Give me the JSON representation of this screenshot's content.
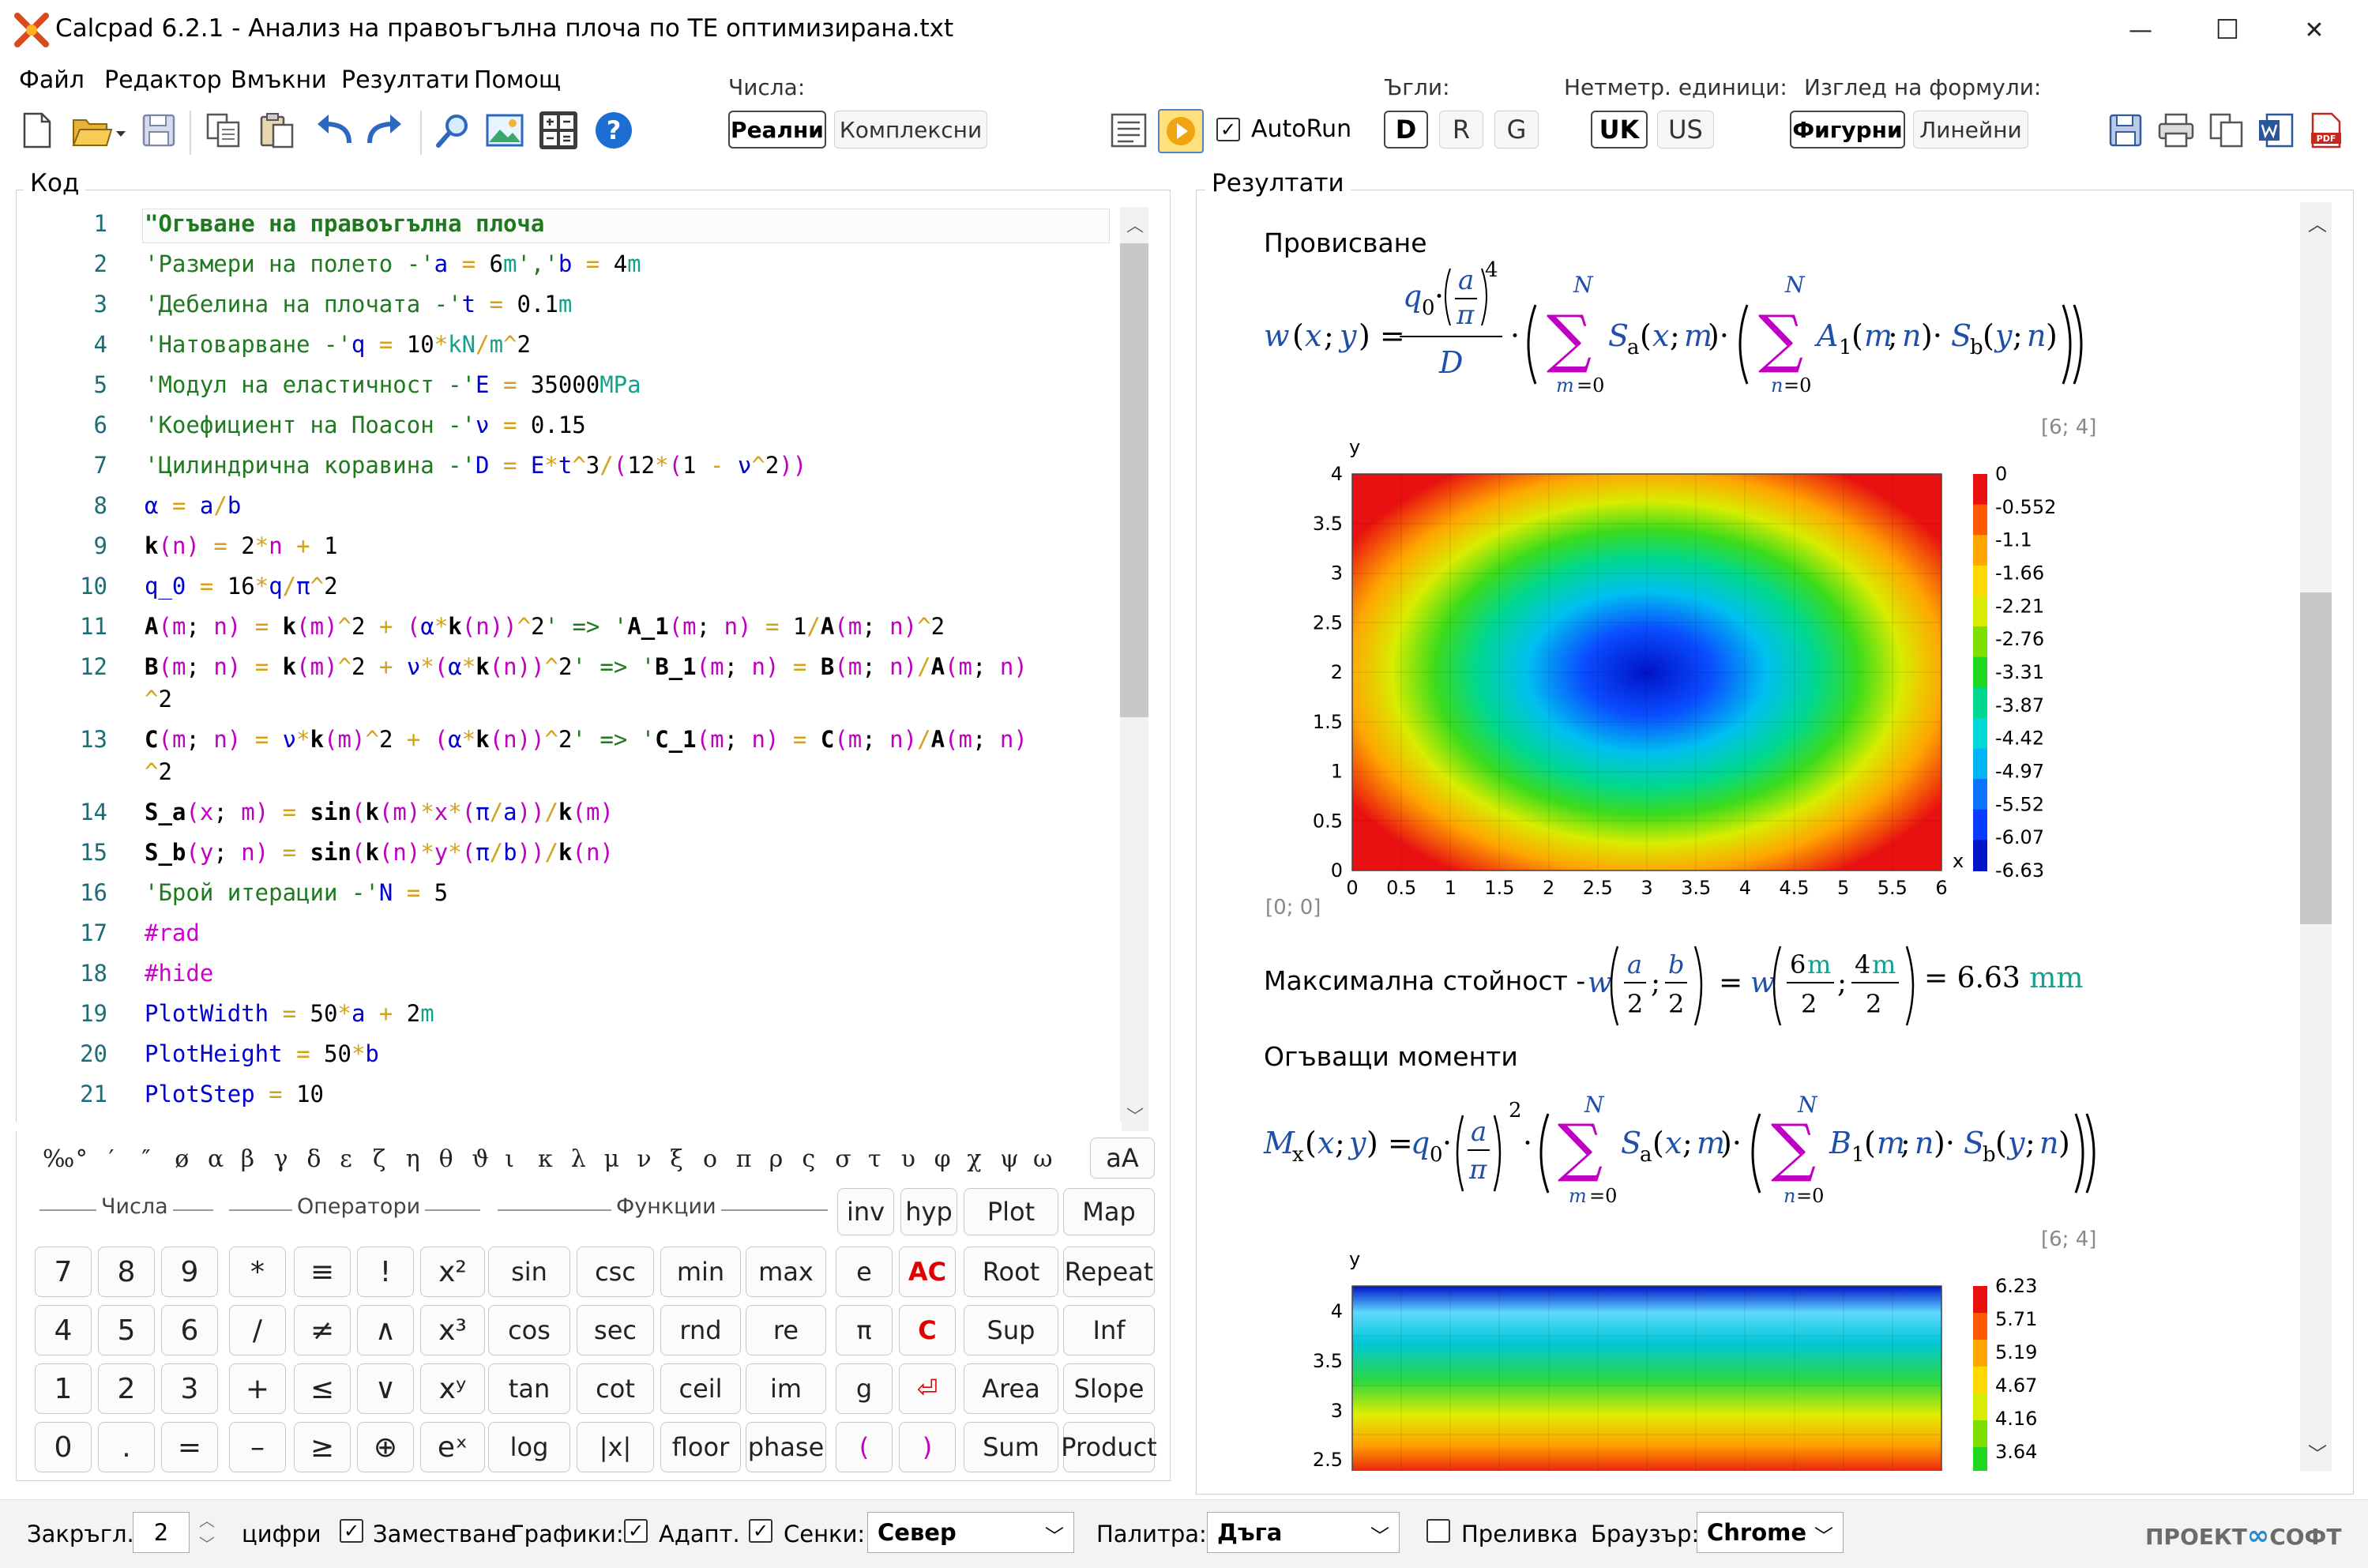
{
  "window": {
    "title": "Calcpad 6.2.1 - Анализ на правоъгълна плоча по ТЕ оптимизирана.txt",
    "minimize": "—",
    "maximize": "☐",
    "close": "✕"
  },
  "menu": [
    "Файл",
    "Редактор",
    "Вмъкни",
    "Резултати",
    "Помощ"
  ],
  "toolbar": {
    "numbers_label": "Числа:",
    "real": "Реални",
    "complex": "Комплексни",
    "autorun": "AutoRun",
    "angles_label": "Ъгли:",
    "angle_d": "D",
    "angle_r": "R",
    "angle_g": "G",
    "units_label": "Нетметр. единици:",
    "unit_uk": "UK",
    "unit_us": "US",
    "view_label": "Изглед на формули:",
    "view_figure": "Фигурни",
    "view_linear": "Линейни",
    "help_glyph": "?"
  },
  "code": {
    "title": "Код",
    "line_numbers": [
      "1",
      "2",
      "3",
      "4",
      "5",
      "6",
      "7",
      "8",
      "9",
      "10",
      "11",
      "12",
      "",
      "13",
      "",
      "14",
      "15",
      "16",
      "17",
      "18",
      "19",
      "20",
      "21"
    ]
  },
  "keyboard": {
    "glyphs": [
      "‰",
      "°",
      "′",
      "″",
      "ø",
      "α",
      "β",
      "γ",
      "δ",
      "ε",
      "ζ",
      "η",
      "θ",
      "ϑ",
      "ι",
      "κ",
      "λ",
      "μ",
      "ν",
      "ξ",
      "ο",
      "π",
      "ρ",
      "ς",
      "σ",
      "τ",
      "υ",
      "φ",
      "χ",
      "ψ",
      "ω"
    ],
    "case_toggle": "aA",
    "group_numbers": "Числа",
    "group_operators": "Оператори",
    "group_functions": "Функции",
    "inv": "inv",
    "hyp": "hyp",
    "plot": "Plot",
    "map": "Map",
    "rows": [
      [
        "7",
        "8",
        "9",
        "*",
        "≡",
        "!",
        "x²",
        "sin",
        "csc",
        "min",
        "max",
        "e",
        "AC",
        "Root",
        "Repeat"
      ],
      [
        "4",
        "5",
        "6",
        "/",
        "≠",
        "∧",
        "x³",
        "cos",
        "sec",
        "rnd",
        "re",
        "π",
        "C",
        "Sup",
        "Inf"
      ],
      [
        "1",
        "2",
        "3",
        "+",
        "≤",
        "∨",
        "xʸ",
        "tan",
        "cot",
        "ceil",
        "im",
        "g",
        "⏎",
        "Area",
        "Slope"
      ],
      [
        "0",
        ".",
        "=",
        "–",
        "≥",
        "⊕",
        "eˣ",
        "log",
        "|x|",
        "floor",
        "phase",
        "(",
        ")",
        "Sum",
        "Product"
      ]
    ]
  },
  "results": {
    "title": "Резултати",
    "heading_deflection": "Провисване",
    "dims_1": "[6; 4]",
    "origin_1": "[0; 0]",
    "max_label": "Максимална стойност -",
    "max_value": "= 6.63",
    "max_unit": "mm",
    "heading_moments": "Огъващи моменти",
    "dims_2": "[6; 4]",
    "plot1_axis_x": "x",
    "plot1_axis_y": "y",
    "plot1_xticks": [
      "0",
      "0.5",
      "1",
      "1.5",
      "2",
      "2.5",
      "3",
      "3.5",
      "4",
      "4.5",
      "5",
      "5.5",
      "6"
    ],
    "plot1_yticks": [
      "0",
      "0.5",
      "1",
      "1.5",
      "2",
      "2.5",
      "3",
      "3.5",
      "4"
    ],
    "plot1_legend": [
      "0",
      "-0.552",
      "-1.1",
      "-1.66",
      "-2.21",
      "-2.76",
      "-3.31",
      "-3.87",
      "-4.42",
      "-4.97",
      "-5.52",
      "-6.07",
      "-6.63"
    ],
    "plot2_axis_y": "y",
    "plot2_yticks": [
      "2.5",
      "3",
      "3.5",
      "4"
    ],
    "plot2_legend": [
      "6.23",
      "5.71",
      "5.19",
      "4.67",
      "4.16",
      "3.64"
    ]
  },
  "statusbar": {
    "round_label": "Закръгл.",
    "round_value": "2",
    "digits": "цифри",
    "substitution": "Заместване",
    "plots": "Графики:",
    "adaptive": "Адапт.",
    "shadows": "Сенки:",
    "shadow_dir": "Север",
    "palette_label": "Палитра:",
    "palette": "Дъга",
    "gradient": "Преливка",
    "browser_label": "Браузър:",
    "browser": "Chrome",
    "brand": "ПРОЕКТ",
    "brand2": "СОФТ"
  },
  "colors": {
    "accent_blue": "#1f4fa8",
    "comment_green": "#1f7a1f",
    "keyword_magenta": "#d000d0",
    "ac_red": "#e00000"
  }
}
